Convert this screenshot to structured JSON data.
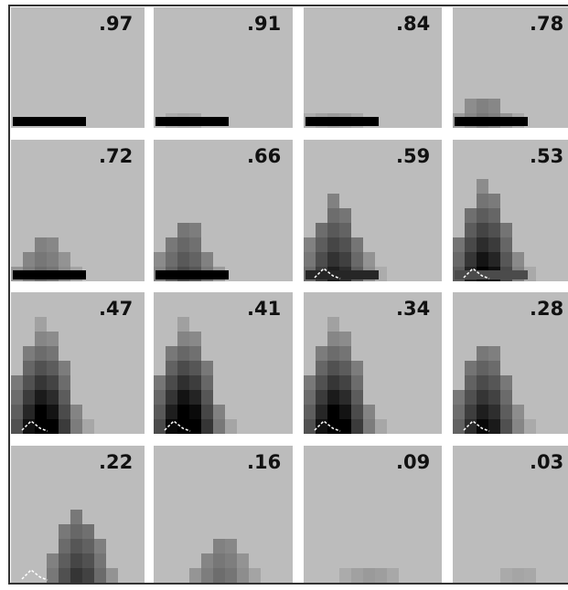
{
  "panels": [
    {
      "label": ".97"
    },
    {
      "label": ".91"
    },
    {
      "label": ".84"
    },
    {
      "label": ".78"
    },
    {
      "label": ".72"
    },
    {
      "label": ".66"
    },
    {
      "label": ".59"
    },
    {
      "label": ".53"
    },
    {
      "label": ".47"
    },
    {
      "label": ".41"
    },
    {
      "label": ".34"
    },
    {
      "label": ".28"
    },
    {
      "label": ".22"
    },
    {
      "label": ".16"
    },
    {
      "label": ".09"
    },
    {
      "label": ".03"
    }
  ]
}
